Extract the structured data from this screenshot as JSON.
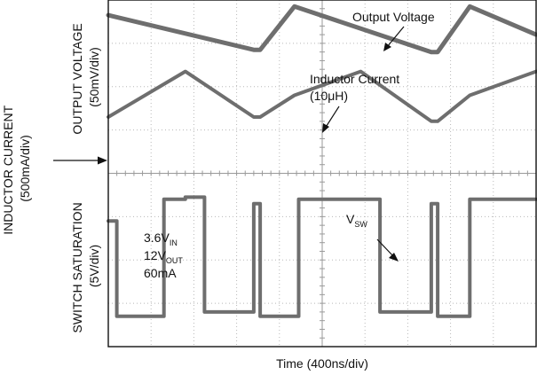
{
  "chart_data": {
    "type": "line",
    "title": "",
    "xlabel": "Time (400ns/div)",
    "x_units_per_div": "400ns",
    "grid": true,
    "grid_divisions": {
      "x": 10,
      "y": 8
    },
    "x_divisions": [
      0,
      1,
      2,
      3,
      4,
      5,
      6,
      7,
      8,
      9,
      10
    ],
    "channels": [
      {
        "name": "Output Voltage",
        "label_annotation": "Output Voltage",
        "scale_label_lines": [
          "OUTPUT VOLTAGE",
          "(50mV/div)"
        ],
        "x_div": [
          0,
          3.4,
          3.55,
          4.35,
          7.55,
          7.7,
          8.45,
          10
        ],
        "y_div": [
          3.65,
          2.85,
          2.85,
          3.85,
          2.8,
          2.8,
          3.85,
          3.2
        ]
      },
      {
        "name": "Inductor Current",
        "label_annotation_lines": [
          "Inductor Current",
          "(10μH)"
        ],
        "scale_label_lines": [
          "INDUCTOR CURRENT",
          "(500mA/div)"
        ],
        "x_div": [
          0,
          1.8,
          3.4,
          3.55,
          4.35,
          5.9,
          7.55,
          7.7,
          8.45,
          10
        ],
        "y_div": [
          1.3,
          2.35,
          1.3,
          1.3,
          1.8,
          2.35,
          1.2,
          1.2,
          1.8,
          2.35
        ]
      },
      {
        "name": "Switch Saturation",
        "label_annotation": "V",
        "label_annotation_sub": "SW",
        "scale_label_lines": [
          "SWITCH SATURATION",
          "(5V/div)"
        ],
        "x_div": [
          0,
          0.2,
          0.2,
          1.3,
          1.3,
          1.8,
          1.8,
          2.25,
          2.25,
          3.4,
          3.4,
          3.55,
          3.55,
          4.45,
          4.45,
          5.9,
          5.9,
          6.35,
          6.35,
          7.55,
          7.55,
          7.7,
          7.7,
          8.45,
          8.45,
          10
        ],
        "y_div": [
          -1.1,
          -1.1,
          -3.3,
          -3.3,
          -0.6,
          -0.6,
          -0.55,
          -0.55,
          -3.2,
          -3.2,
          -0.7,
          -0.7,
          -3.3,
          -3.3,
          -0.6,
          -0.6,
          -0.6,
          -0.6,
          -3.2,
          -3.2,
          -0.7,
          -0.7,
          -3.3,
          -3.3,
          -0.6,
          -0.6
        ]
      }
    ],
    "arrow_marker_label": "",
    "conditions": [
      {
        "main": "3.6V",
        "sub": "IN"
      },
      {
        "main": "12V",
        "sub": "OUT"
      },
      {
        "main": "60mA",
        "sub": ""
      }
    ],
    "colors": {
      "trace": "#6e6e6e",
      "grid": "#b8b8b8",
      "frame": "#111111"
    }
  }
}
